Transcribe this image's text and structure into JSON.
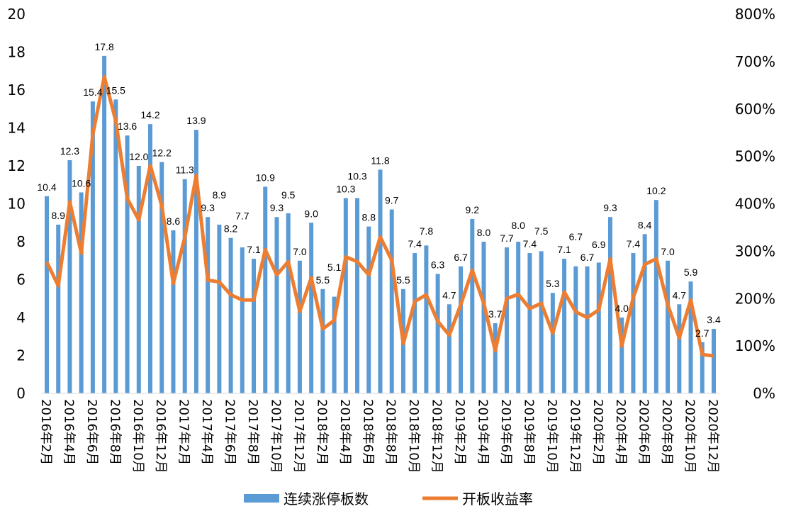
{
  "chart_data": {
    "type": "bar+line",
    "title": "",
    "categories": [
      "2016年2月",
      "2016年3月",
      "2016年4月",
      "2016年5月",
      "2016年6月",
      "2016年7月",
      "2016年8月",
      "2016年9月",
      "2016年10月",
      "2016年11月",
      "2016年12月",
      "2017年1月",
      "2017年2月",
      "2017年3月",
      "2017年4月",
      "2017年5月",
      "2017年6月",
      "2017年7月",
      "2017年8月",
      "2017年9月",
      "2017年10月",
      "2017年11月",
      "2017年12月",
      "2018年1月",
      "2018年2月",
      "2018年3月",
      "2018年4月",
      "2018年5月",
      "2018年6月",
      "2018年7月",
      "2018年8月",
      "2018年9月",
      "2018年10月",
      "2018年11月",
      "2018年12月",
      "2019年1月",
      "2019年2月",
      "2019年3月",
      "2019年4月",
      "2019年5月",
      "2019年6月",
      "2019年7月",
      "2019年8月",
      "2019年9月",
      "2019年10月",
      "2019年11月",
      "2019年12月",
      "2020年1月",
      "2020年2月",
      "2020年3月",
      "2020年4月",
      "2020年5月",
      "2020年6月",
      "2020年7月",
      "2020年8月",
      "2020年9月",
      "2020年10月",
      "2020年11月",
      "2020年12月"
    ],
    "x_tick_labels_shown": [
      "2016年2月",
      "2016年4月",
      "2016年6月",
      "2016年8月",
      "2016年10月",
      "2016年12月",
      "2017年2月",
      "2017年4月",
      "2017年6月",
      "2017年8月",
      "2017年10月",
      "2017年12月",
      "2018年2月",
      "2018年4月",
      "2018年6月",
      "2018年8月",
      "2018年10月",
      "2018年12月",
      "2019年2月",
      "2019年4月",
      "2019年6月",
      "2019年8月",
      "2019年10月",
      "2019年12月",
      "2020年2月",
      "2020年4月",
      "2020年6月",
      "2020年8月",
      "2020年10月",
      "2020年12月"
    ],
    "series": [
      {
        "name": "连续涨停板数",
        "type": "bar",
        "axis": "left",
        "color": "#5b9bd5",
        "values": [
          10.4,
          8.9,
          12.3,
          10.6,
          15.4,
          17.8,
          15.5,
          13.6,
          12.0,
          14.2,
          12.2,
          8.6,
          11.3,
          13.9,
          9.3,
          8.9,
          8.2,
          7.7,
          7.1,
          10.9,
          9.3,
          9.5,
          7.0,
          9.0,
          5.5,
          5.1,
          10.3,
          10.3,
          8.8,
          11.8,
          9.7,
          5.5,
          7.4,
          7.8,
          6.3,
          4.7,
          6.7,
          9.2,
          8.0,
          3.7,
          7.7,
          8.0,
          7.4,
          7.5,
          5.3,
          7.1,
          6.7,
          6.7,
          6.9,
          9.3,
          4.0,
          7.4,
          8.4,
          10.2,
          7.0,
          4.7,
          5.9,
          2.7,
          3.4
        ],
        "data_labels": [
          "10.4",
          "8.9",
          "12.3",
          "10.6",
          "15.4",
          "17.8",
          "15.5",
          "13.6",
          "12.0",
          "14.2",
          "12.2",
          "8.6",
          "11.3",
          "13.9",
          "9.3",
          "8.9",
          "8.2",
          "7.7",
          "7.1",
          "10.9",
          "9.3",
          "9.5",
          "7.0",
          "9.0",
          "5.5",
          "5.1",
          "10.3",
          "10.3",
          "8.8",
          "11.8",
          "9.7",
          "5.5",
          "7.4",
          "7.8",
          "6.3",
          "4.7",
          "6.7",
          "9.2",
          "8.0",
          "3.7",
          "7.7",
          "8.0",
          "7.4",
          "7.5",
          "5.3",
          "7.1",
          "6.7",
          "6.7",
          "6.9",
          "9.3",
          "4.0",
          "7.4",
          "8.4",
          "10.2",
          "7.0",
          "4.7",
          "5.9",
          "2.7",
          "3.4"
        ]
      },
      {
        "name": "开板收益率",
        "type": "line",
        "axis": "right",
        "color": "#ed7d31",
        "values": [
          277,
          227,
          404,
          296,
          546,
          668,
          575,
          411,
          366,
          481,
          396,
          232,
          329,
          460,
          239,
          235,
          208,
          197,
          197,
          303,
          250,
          278,
          173,
          244,
          136,
          154,
          288,
          278,
          250,
          330,
          281,
          105,
          194,
          208,
          152,
          123,
          187,
          260,
          190,
          90,
          200,
          209,
          179,
          190,
          127,
          214,
          172,
          160,
          176,
          284,
          100,
          202,
          272,
          284,
          187,
          117,
          197,
          82,
          79
        ]
      }
    ],
    "y_left": {
      "min": 0,
      "max": 20,
      "ticks": [
        "0",
        "2",
        "4",
        "6",
        "8",
        "10",
        "12",
        "14",
        "16",
        "18",
        "20"
      ]
    },
    "y_right": {
      "min": 0,
      "max": 800,
      "unit": "%",
      "ticks": [
        "0%",
        "100%",
        "200%",
        "300%",
        "400%",
        "500%",
        "600%",
        "700%",
        "800%"
      ]
    },
    "grid": false,
    "legend_position": "bottom",
    "legend": [
      "连续涨停板数",
      "开板收益率"
    ]
  }
}
